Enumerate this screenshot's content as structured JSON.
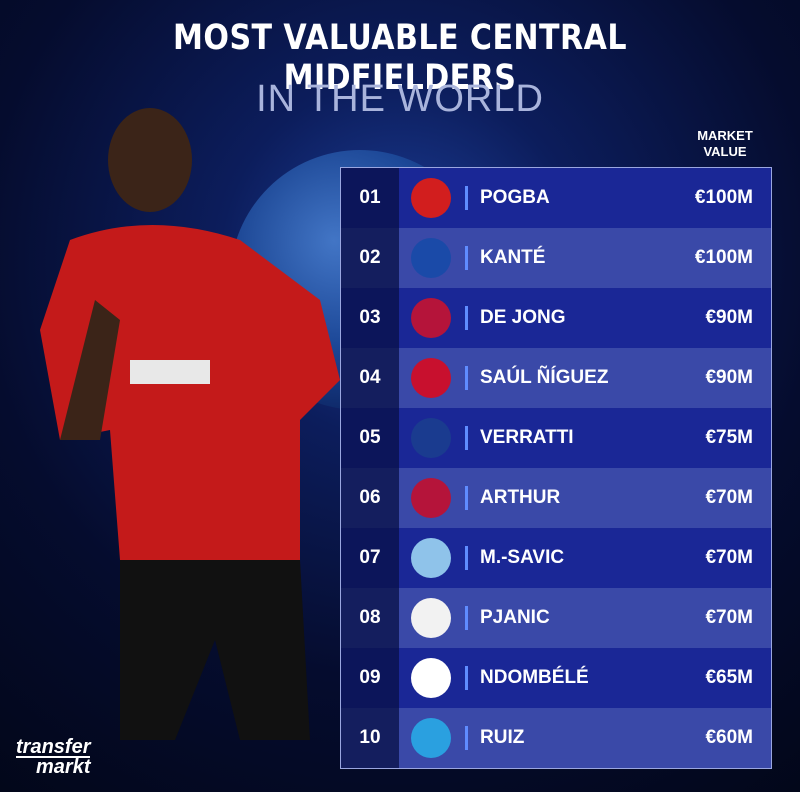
{
  "header": {
    "title": "MOST VALUABLE CENTRAL MIDFIELDERS",
    "subtitle": "IN THE WORLD"
  },
  "table": {
    "column_header": "MARKET VALUE",
    "rows": [
      [
        "01",
        "POGBA",
        "€100M"
      ],
      [
        "02",
        "KANTÉ",
        "€100M"
      ],
      [
        "03",
        "DE JONG",
        "€90M"
      ],
      [
        "04",
        "SAÚL ÑÍGUEZ",
        "€90M"
      ],
      [
        "05",
        "VERRATTI",
        "€75M"
      ],
      [
        "06",
        "ARTHUR",
        "€70M"
      ],
      [
        "07",
        "M.-SAVIC",
        "€70M"
      ],
      [
        "08",
        "PJANIC",
        "€70M"
      ],
      [
        "09",
        "NDOMBÉLÉ",
        "€65M"
      ],
      [
        "10",
        "RUIZ",
        "€60M"
      ]
    ]
  },
  "logo": {
    "line1": "transfer",
    "line2": "markt"
  }
}
